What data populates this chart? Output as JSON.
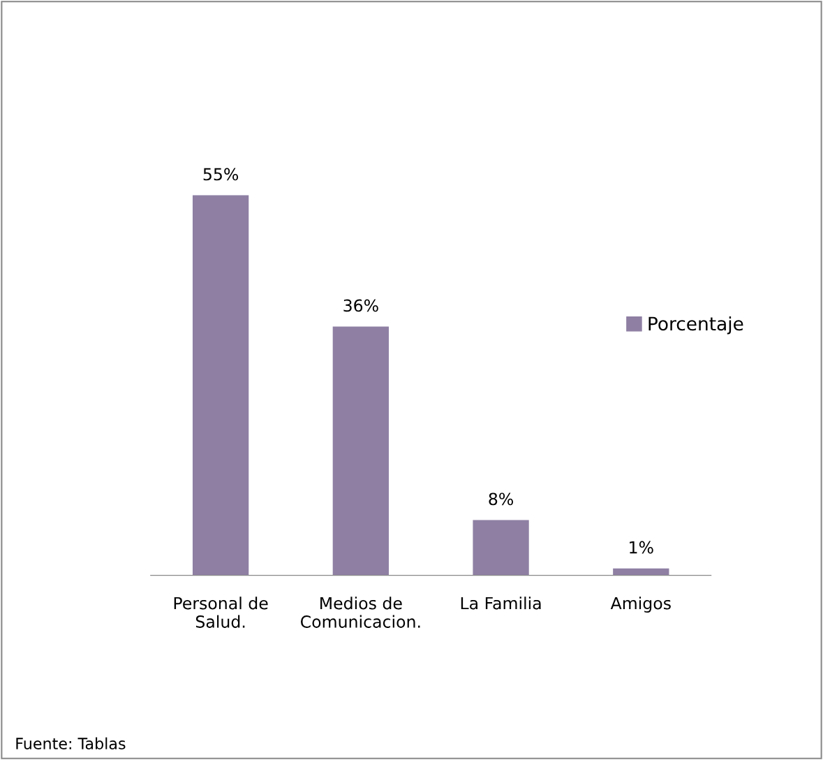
{
  "chart_data": {
    "type": "bar",
    "categories": [
      "Personal de\nSalud.",
      "Medios de\nComunicacion.",
      "La Familia",
      "Amigos"
    ],
    "series": [
      {
        "name": "Porcentaje",
        "color": "#8e7fa3",
        "values": [
          55,
          36,
          8,
          1
        ],
        "value_labels": [
          "55%",
          "36%",
          "8%",
          "1%"
        ]
      }
    ],
    "tick_labels": "x",
    "grid": false,
    "legend": "right",
    "annotations": [
      "Fuente: Tablas"
    ]
  }
}
